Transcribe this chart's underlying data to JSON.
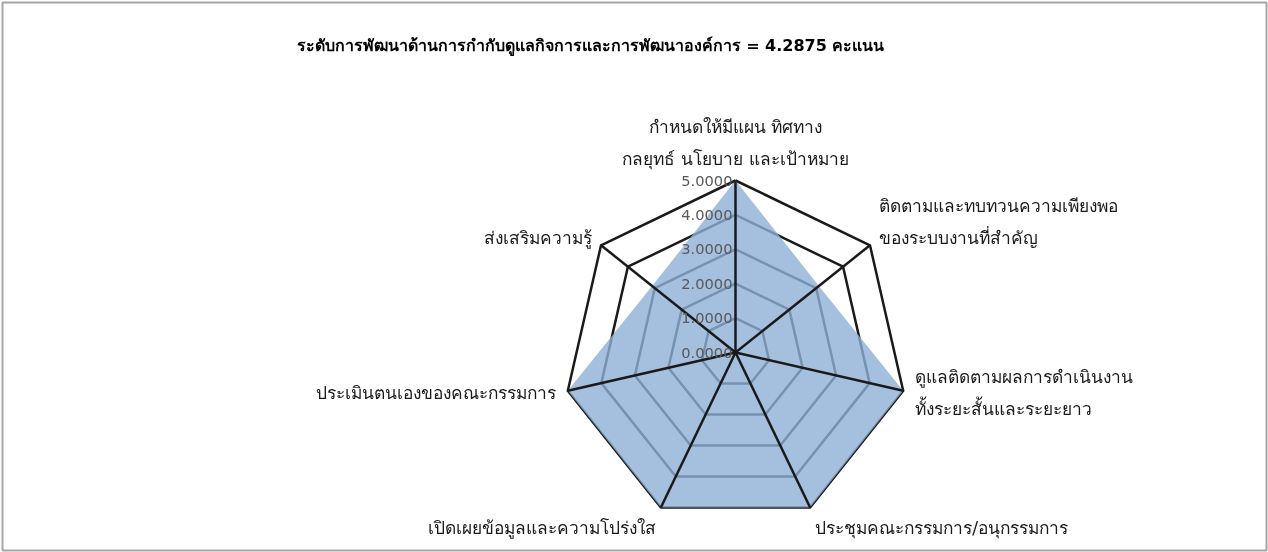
{
  "chart_data": {
    "type": "radar",
    "title": "ระดับการพัฒนาด้านการกำกับดูแลกิจการและการพัฒนาองค์การ = 4.2875 คะแนน",
    "categories": [
      "กำหนดให้มีแผน ทิศทาง\nกลยุทธ์ นโยบาย และเป้าหมาย",
      "ติดตามและทบทวนความเพียงพอ\nของระบบงานที่สำคัญ",
      "ดูแลติดตามผลการดำเนินงาน\nทั้งระยะสั้นและระยะยาว",
      "ประชุมคณะกรรมการ/อนุกรรมการ",
      "เปิดเผยข้อมูลและความโปร่งใส",
      "ประเมินตนเองของคณะกรรมการ",
      "ส่งเสริมความรู้"
    ],
    "series": [
      {
        "color": "#8eafd6",
        "values": [
          5,
          3.1,
          5,
          5,
          5,
          5,
          3.1
        ]
      }
    ],
    "ylim": [
      0,
      5
    ],
    "yticks": [
      {
        "value": 0,
        "label": "0.0000"
      },
      {
        "value": 1,
        "label": "1.0000"
      },
      {
        "value": 2,
        "label": "2.0000"
      },
      {
        "value": 3,
        "label": "3.0000"
      },
      {
        "value": 4,
        "label": "4.0000"
      },
      {
        "value": 5,
        "label": "5.0000"
      }
    ]
  }
}
